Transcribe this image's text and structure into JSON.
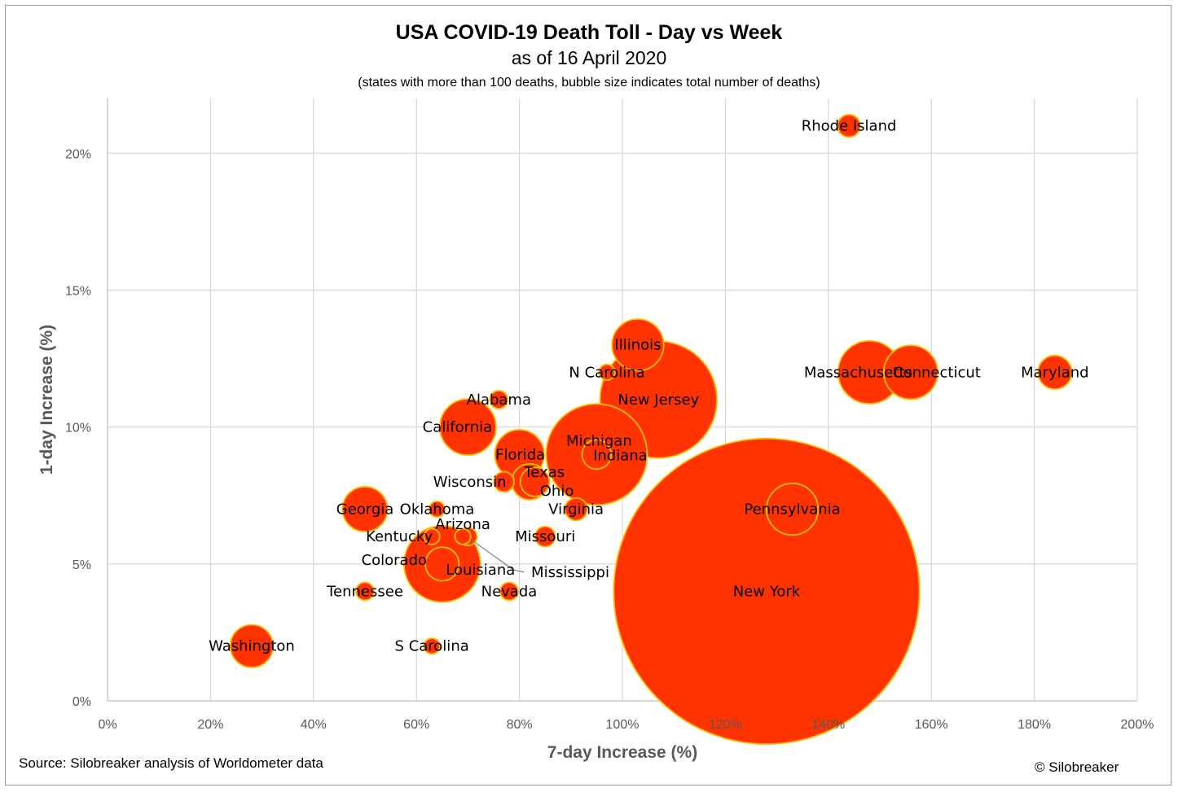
{
  "chart_data": {
    "type": "bubble",
    "title": "USA COVID-19 Death Toll - Day vs Week",
    "subtitle": "as of 16 April 2020",
    "note": "(states with more than 100 deaths, bubble size indicates total number of deaths)",
    "xlabel": "7-day Increase (%)",
    "ylabel": "1-day Increase (%)",
    "xlim": [
      0,
      200
    ],
    "ylim": [
      0,
      22
    ],
    "xticks": [
      0,
      20,
      40,
      60,
      80,
      100,
      120,
      140,
      160,
      180,
      200
    ],
    "yticks": [
      0,
      5,
      10,
      15,
      20
    ],
    "x_tick_labels": [
      "0%",
      "20%",
      "40%",
      "60%",
      "80%",
      "100%",
      "120%",
      "140%",
      "160%",
      "180%",
      "200%"
    ],
    "y_tick_labels": [
      "0%",
      "5%",
      "10%",
      "15%",
      "20%"
    ],
    "grid": true,
    "colors": {
      "bubble_fill": "#FF3300",
      "bubble_stroke": "#FFC000",
      "grid": "#d9d9d9",
      "axis": "#bfbfbf"
    },
    "points": [
      {
        "label": "Rhode Island",
        "x": 144,
        "y": 21,
        "size": 1.0
      },
      {
        "label": "Illinois",
        "x": 103,
        "y": 13,
        "size": 2.3
      },
      {
        "label": "N Carolina",
        "x": 97,
        "y": 12,
        "size": 0.7
      },
      {
        "label": "Massachusetts",
        "x": 148,
        "y": 12,
        "size": 2.8
      },
      {
        "label": "Connecticut",
        "x": 156,
        "y": 12,
        "size": 2.4
      },
      {
        "label": "Maryland",
        "x": 184,
        "y": 12,
        "size": 1.5
      },
      {
        "label": "Alabama",
        "x": 76,
        "y": 11,
        "size": 0.8
      },
      {
        "label": "New Jersey",
        "x": 107,
        "y": 11,
        "size": 5.2
      },
      {
        "label": "California",
        "x": 70,
        "y": 10,
        "size": 2.5
      },
      {
        "label": "Michigan",
        "x": 95,
        "y": 9,
        "size": 4.5
      },
      {
        "label": "Indiana",
        "x": 95,
        "y": 9,
        "size": 1.3
      },
      {
        "label": "Florida",
        "x": 80,
        "y": 9,
        "size": 2.2
      },
      {
        "label": "Wisconsin",
        "x": 77,
        "y": 8,
        "size": 0.9
      },
      {
        "label": "Texas",
        "x": 82,
        "y": 8,
        "size": 1.6
      },
      {
        "label": "Ohio",
        "x": 83,
        "y": 8,
        "size": 1.3
      },
      {
        "label": "Georgia",
        "x": 50,
        "y": 7,
        "size": 2.0
      },
      {
        "label": "Oklahoma",
        "x": 64,
        "y": 7,
        "size": 0.7
      },
      {
        "label": "Virginia",
        "x": 91,
        "y": 7,
        "size": 1.0
      },
      {
        "label": "Pennsylvania",
        "x": 133,
        "y": 7,
        "size": 2.3
      },
      {
        "label": "Kentucky",
        "x": 63,
        "y": 6,
        "size": 0.7
      },
      {
        "label": "Arizona",
        "x": 69,
        "y": 6,
        "size": 0.7
      },
      {
        "label": "Mississippi",
        "x": 70,
        "y": 6,
        "size": 0.8
      },
      {
        "label": "Missouri",
        "x": 85,
        "y": 6,
        "size": 0.9
      },
      {
        "label": "Louisiana",
        "x": 65,
        "y": 5,
        "size": 3.4
      },
      {
        "label": "Colorado",
        "x": 65,
        "y": 5,
        "size": 1.5
      },
      {
        "label": "Tennessee",
        "x": 50,
        "y": 4,
        "size": 0.8
      },
      {
        "label": "Nevada",
        "x": 78,
        "y": 4,
        "size": 0.8
      },
      {
        "label": "New York",
        "x": 128,
        "y": 4,
        "size": 13.6
      },
      {
        "label": "Washington",
        "x": 28,
        "y": 2,
        "size": 1.9
      },
      {
        "label": "S Carolina",
        "x": 63,
        "y": 2,
        "size": 0.7
      }
    ]
  },
  "footer": {
    "source": "Source: Silobreaker analysis of Worldometer data",
    "copyright": "© Silobreaker"
  }
}
